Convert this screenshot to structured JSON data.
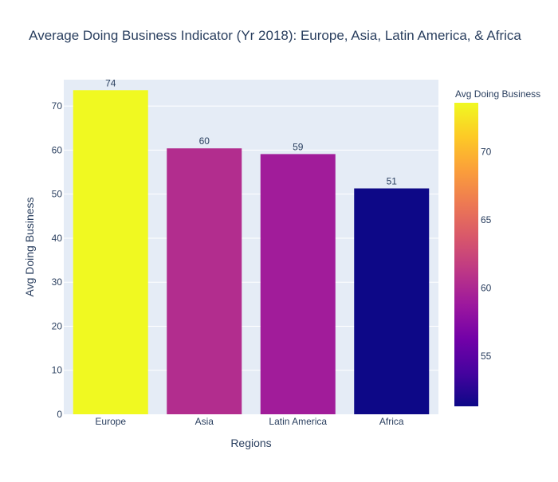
{
  "chart_data": {
    "type": "bar",
    "title": "Average Doing Business Indicator (Yr 2018): Europe, Asia, Latin America, & Africa",
    "xlabel": "Regions",
    "ylabel": "Avg Doing Business",
    "categories": [
      "Europe",
      "Asia",
      "Latin America",
      "Africa"
    ],
    "values": [
      73.6,
      60.4,
      59.1,
      51.3
    ],
    "data_labels": [
      "74",
      "60",
      "59",
      "51"
    ],
    "ylim": [
      0,
      76
    ],
    "yticks": [
      0,
      10,
      20,
      30,
      40,
      50,
      60,
      70
    ],
    "grid": true,
    "colorbar": {
      "title": "Avg Doing Business",
      "ticks": [
        55,
        60,
        65,
        70
      ],
      "range": [
        51.3,
        73.6
      ],
      "colorscale": "plasma"
    },
    "colors": {
      "plot_background": "#e5ecf6",
      "grid": "#ffffff",
      "text": "#2a3f5f"
    }
  }
}
